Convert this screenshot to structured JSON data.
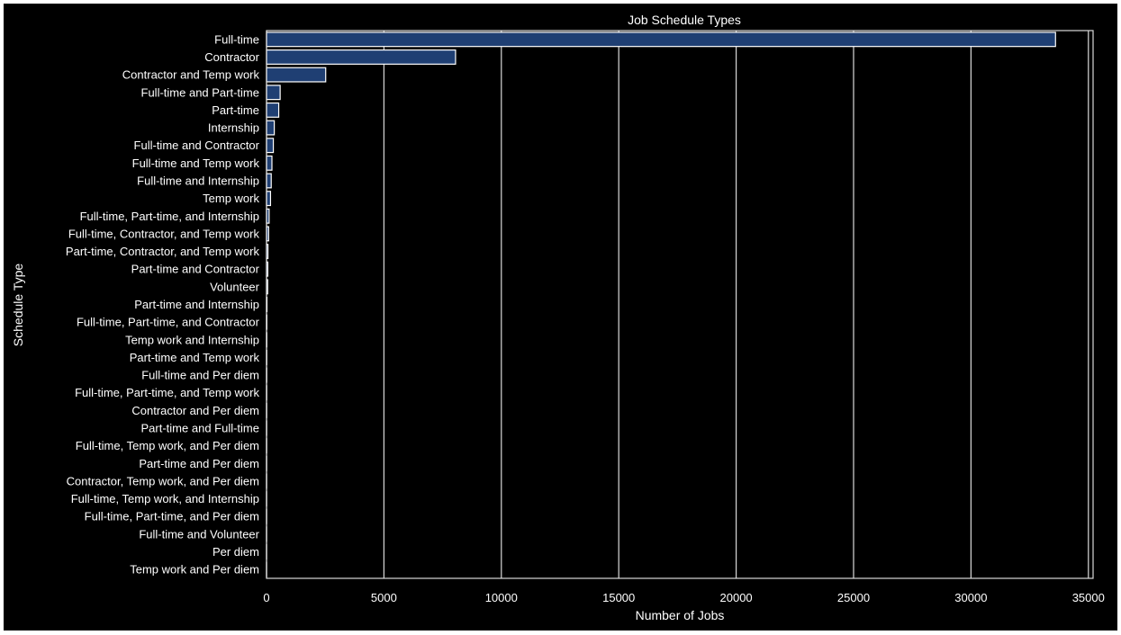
{
  "chart_data": {
    "type": "bar",
    "orientation": "horizontal",
    "title": "Job Schedule Types",
    "xlabel": "Number of Jobs",
    "ylabel": "Schedule Type",
    "xlim": [
      0,
      35200
    ],
    "xticks": [
      0,
      5000,
      10000,
      15000,
      20000,
      25000,
      30000,
      35000
    ],
    "grid": true,
    "categories": [
      "Full-time",
      "Contractor",
      "Contractor and Temp work",
      "Full-time and Part-time",
      "Part-time",
      "Internship",
      "Full-time and Contractor",
      "Full-time and Temp work",
      "Full-time and Internship",
      "Temp work",
      "Full-time, Part-time, and Internship",
      "Full-time, Contractor, and Temp work",
      "Part-time, Contractor, and Temp work",
      "Part-time and Contractor",
      "Volunteer",
      "Part-time and Internship",
      "Full-time, Part-time, and Contractor",
      "Temp work and Internship",
      "Part-time and Temp work",
      "Full-time and Per diem",
      "Full-time, Part-time, and Temp work",
      "Contractor and Per diem",
      "Part-time and Full-time",
      "Full-time, Temp work, and Per diem",
      "Part-time and Per diem",
      "Contractor, Temp work, and Per diem",
      "Full-time, Temp work, and Internship",
      "Full-time, Part-time, and Per diem",
      "Full-time and Volunteer",
      "Per diem",
      "Temp work and Per diem"
    ],
    "values": [
      33600,
      8050,
      2520,
      580,
      520,
      330,
      290,
      230,
      200,
      170,
      110,
      90,
      60,
      55,
      50,
      20,
      15,
      12,
      10,
      8,
      7,
      6,
      5,
      5,
      4,
      3,
      3,
      3,
      2,
      2,
      1
    ],
    "colors": {
      "bar": "#1f3f73",
      "bar_edge": "#ffffff",
      "background": "#000000",
      "grid": "#d9d9d9"
    }
  }
}
